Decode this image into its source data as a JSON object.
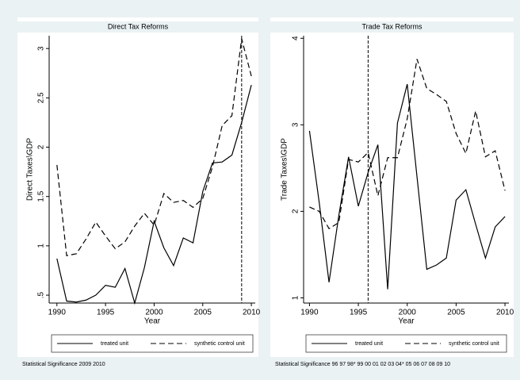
{
  "chart_data": [
    {
      "type": "line",
      "title": "Direct Tax Reforms",
      "x_label": "Year",
      "y_label": "Direct Taxes\\GDP",
      "x": [
        1990,
        1991,
        1992,
        1993,
        1994,
        1995,
        1996,
        1997,
        1998,
        1999,
        2000,
        2001,
        2002,
        2003,
        2004,
        2005,
        2006,
        2007,
        2008,
        2009,
        2010
      ],
      "series": [
        {
          "name": "treated unit",
          "color": "#000000",
          "style": "solid",
          "values": [
            0.87,
            0.44,
            0.43,
            0.45,
            0.5,
            0.6,
            0.58,
            0.77,
            0.42,
            0.78,
            1.25,
            0.98,
            0.8,
            1.08,
            1.03,
            1.55,
            1.84,
            1.85,
            1.92,
            2.25,
            2.63
          ]
        },
        {
          "name": "synthetic control unit",
          "color": "#000000",
          "style": "dashed",
          "values": [
            1.82,
            0.9,
            0.92,
            1.07,
            1.24,
            1.1,
            0.97,
            1.04,
            1.2,
            1.33,
            1.21,
            1.53,
            1.44,
            1.46,
            1.39,
            1.48,
            1.8,
            2.22,
            2.32,
            3.1,
            2.72
          ]
        }
      ],
      "vline": 2009,
      "xlim": [
        1989.2,
        2010.4
      ],
      "xticks": [
        1990,
        1995,
        2000,
        2005,
        2010
      ],
      "ylim": [
        0.42,
        3.13
      ],
      "yticks": [
        {
          "value": 0.5,
          "label": ".5"
        },
        1,
        1.5,
        2,
        2.5,
        3
      ],
      "note": "Statistical Significance 2009 2010"
    },
    {
      "type": "line",
      "title": "Trade Tax Reforms",
      "x_label": "Year",
      "y_label": "Trade Taxes\\GDP",
      "x": [
        1990,
        1991,
        1992,
        1993,
        1994,
        1995,
        1996,
        1997,
        1998,
        1999,
        2000,
        2001,
        2002,
        2003,
        2004,
        2005,
        2006,
        2007,
        2008,
        2009,
        2010
      ],
      "series": [
        {
          "name": "treated unit",
          "color": "#000000",
          "style": "solid",
          "values": [
            2.93,
            2.1,
            1.18,
            1.95,
            2.63,
            2.06,
            2.45,
            2.77,
            1.1,
            3.02,
            3.47,
            2.4,
            1.33,
            1.38,
            1.46,
            2.13,
            2.25,
            1.85,
            1.46,
            1.82,
            1.94
          ]
        },
        {
          "name": "synthetic control unit",
          "color": "#000000",
          "style": "dashed",
          "values": [
            2.05,
            2.0,
            1.8,
            1.87,
            2.6,
            2.57,
            2.68,
            2.18,
            2.62,
            2.62,
            3.07,
            3.76,
            3.42,
            3.35,
            3.27,
            2.9,
            2.67,
            3.16,
            2.63,
            2.7,
            2.24
          ]
        }
      ],
      "vline": 1996,
      "xlim": [
        1989.4,
        2010.4
      ],
      "xticks": [
        1990,
        1995,
        2000,
        2005,
        2010
      ],
      "ylim": [
        0.94,
        4.03
      ],
      "yticks": [
        1,
        2,
        3,
        4
      ],
      "note": "Statistical Significance 96 97 98* 99 00 01 02 03 04* 05 06 07 08 09 10"
    }
  ]
}
